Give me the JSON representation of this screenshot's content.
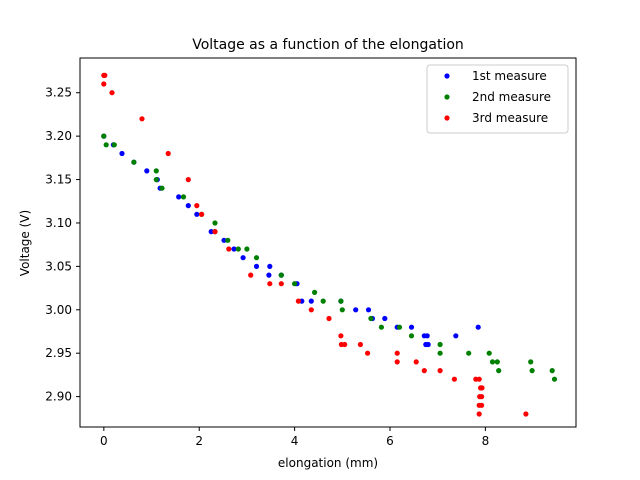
{
  "chart_data": {
    "type": "scatter",
    "title": "Voltage as a function of the elongation",
    "xlabel": "elongation (mm)",
    "ylabel": "Voltage (V)",
    "xlim": [
      -0.5,
      9.9
    ],
    "ylim": [
      2.865,
      3.29
    ],
    "xticks": [
      0,
      2,
      4,
      6,
      8
    ],
    "xtick_labels": [
      "0",
      "2",
      "4",
      "6",
      "8"
    ],
    "yticks": [
      2.9,
      2.95,
      3.0,
      3.05,
      3.1,
      3.15,
      3.2,
      3.25
    ],
    "ytick_labels": [
      "2.90",
      "2.95",
      "3.00",
      "3.05",
      "3.10",
      "3.15",
      "3.20",
      "3.25"
    ],
    "grid": false,
    "legend_position": "top-right",
    "series": [
      {
        "name": "1st measure",
        "color": "#0000ff",
        "points": [
          [
            0.0,
            3.2
          ],
          [
            0.2,
            3.19
          ],
          [
            0.38,
            3.18
          ],
          [
            0.63,
            3.17
          ],
          [
            0.9,
            3.16
          ],
          [
            1.12,
            3.15
          ],
          [
            1.18,
            3.14
          ],
          [
            1.57,
            3.13
          ],
          [
            1.77,
            3.12
          ],
          [
            1.95,
            3.11
          ],
          [
            2.25,
            3.09
          ],
          [
            2.52,
            3.08
          ],
          [
            2.73,
            3.07
          ],
          [
            2.92,
            3.06
          ],
          [
            3.2,
            3.05
          ],
          [
            3.48,
            3.05
          ],
          [
            3.46,
            3.04
          ],
          [
            3.72,
            3.04
          ],
          [
            4.05,
            3.03
          ],
          [
            4.15,
            3.01
          ],
          [
            4.35,
            3.01
          ],
          [
            4.97,
            3.01
          ],
          [
            5.28,
            3.0
          ],
          [
            5.55,
            3.0
          ],
          [
            5.63,
            2.99
          ],
          [
            5.89,
            2.99
          ],
          [
            6.15,
            2.98
          ],
          [
            6.45,
            2.98
          ],
          [
            6.72,
            2.97
          ],
          [
            6.78,
            2.97
          ],
          [
            6.75,
            2.96
          ],
          [
            6.8,
            2.96
          ],
          [
            7.38,
            2.97
          ],
          [
            7.85,
            2.98
          ]
        ]
      },
      {
        "name": "2nd measure",
        "color": "#008000",
        "points": [
          [
            0.0,
            3.2
          ],
          [
            0.05,
            3.19
          ],
          [
            0.22,
            3.19
          ],
          [
            0.63,
            3.17
          ],
          [
            1.1,
            3.16
          ],
          [
            1.1,
            3.15
          ],
          [
            1.22,
            3.14
          ],
          [
            1.67,
            3.13
          ],
          [
            2.05,
            3.11
          ],
          [
            2.33,
            3.1
          ],
          [
            2.33,
            3.09
          ],
          [
            2.6,
            3.08
          ],
          [
            2.82,
            3.07
          ],
          [
            3.0,
            3.07
          ],
          [
            3.2,
            3.06
          ],
          [
            3.72,
            3.04
          ],
          [
            4.0,
            3.03
          ],
          [
            4.42,
            3.02
          ],
          [
            4.6,
            3.01
          ],
          [
            4.97,
            3.01
          ],
          [
            5.0,
            3.0
          ],
          [
            5.6,
            2.99
          ],
          [
            5.82,
            2.98
          ],
          [
            6.2,
            2.98
          ],
          [
            6.45,
            2.97
          ],
          [
            7.05,
            2.96
          ],
          [
            7.05,
            2.95
          ],
          [
            7.65,
            2.95
          ],
          [
            8.08,
            2.95
          ],
          [
            8.15,
            2.94
          ],
          [
            8.25,
            2.94
          ],
          [
            8.28,
            2.93
          ],
          [
            8.95,
            2.94
          ],
          [
            8.98,
            2.93
          ],
          [
            9.4,
            2.93
          ],
          [
            9.45,
            2.92
          ]
        ]
      },
      {
        "name": "3rd measure",
        "color": "#ff0000",
        "points": [
          [
            0.0,
            3.27
          ],
          [
            0.02,
            3.27
          ],
          [
            0.0,
            3.26
          ],
          [
            0.17,
            3.25
          ],
          [
            0.8,
            3.22
          ],
          [
            1.35,
            3.18
          ],
          [
            1.77,
            3.15
          ],
          [
            1.95,
            3.12
          ],
          [
            2.05,
            3.11
          ],
          [
            2.33,
            3.09
          ],
          [
            2.62,
            3.07
          ],
          [
            3.08,
            3.04
          ],
          [
            3.48,
            3.03
          ],
          [
            3.72,
            3.03
          ],
          [
            4.08,
            3.01
          ],
          [
            4.35,
            3.0
          ],
          [
            4.72,
            2.99
          ],
          [
            4.97,
            2.97
          ],
          [
            4.98,
            2.96
          ],
          [
            5.05,
            2.96
          ],
          [
            5.38,
            2.96
          ],
          [
            5.53,
            2.95
          ],
          [
            6.15,
            2.95
          ],
          [
            6.15,
            2.94
          ],
          [
            6.55,
            2.94
          ],
          [
            6.72,
            2.93
          ],
          [
            7.05,
            2.93
          ],
          [
            7.35,
            2.92
          ],
          [
            7.8,
            2.92
          ],
          [
            7.87,
            2.92
          ],
          [
            7.9,
            2.91
          ],
          [
            7.93,
            2.91
          ],
          [
            7.88,
            2.9
          ],
          [
            7.92,
            2.9
          ],
          [
            7.87,
            2.89
          ],
          [
            7.92,
            2.89
          ],
          [
            7.87,
            2.88
          ],
          [
            8.85,
            2.88
          ]
        ]
      }
    ]
  }
}
